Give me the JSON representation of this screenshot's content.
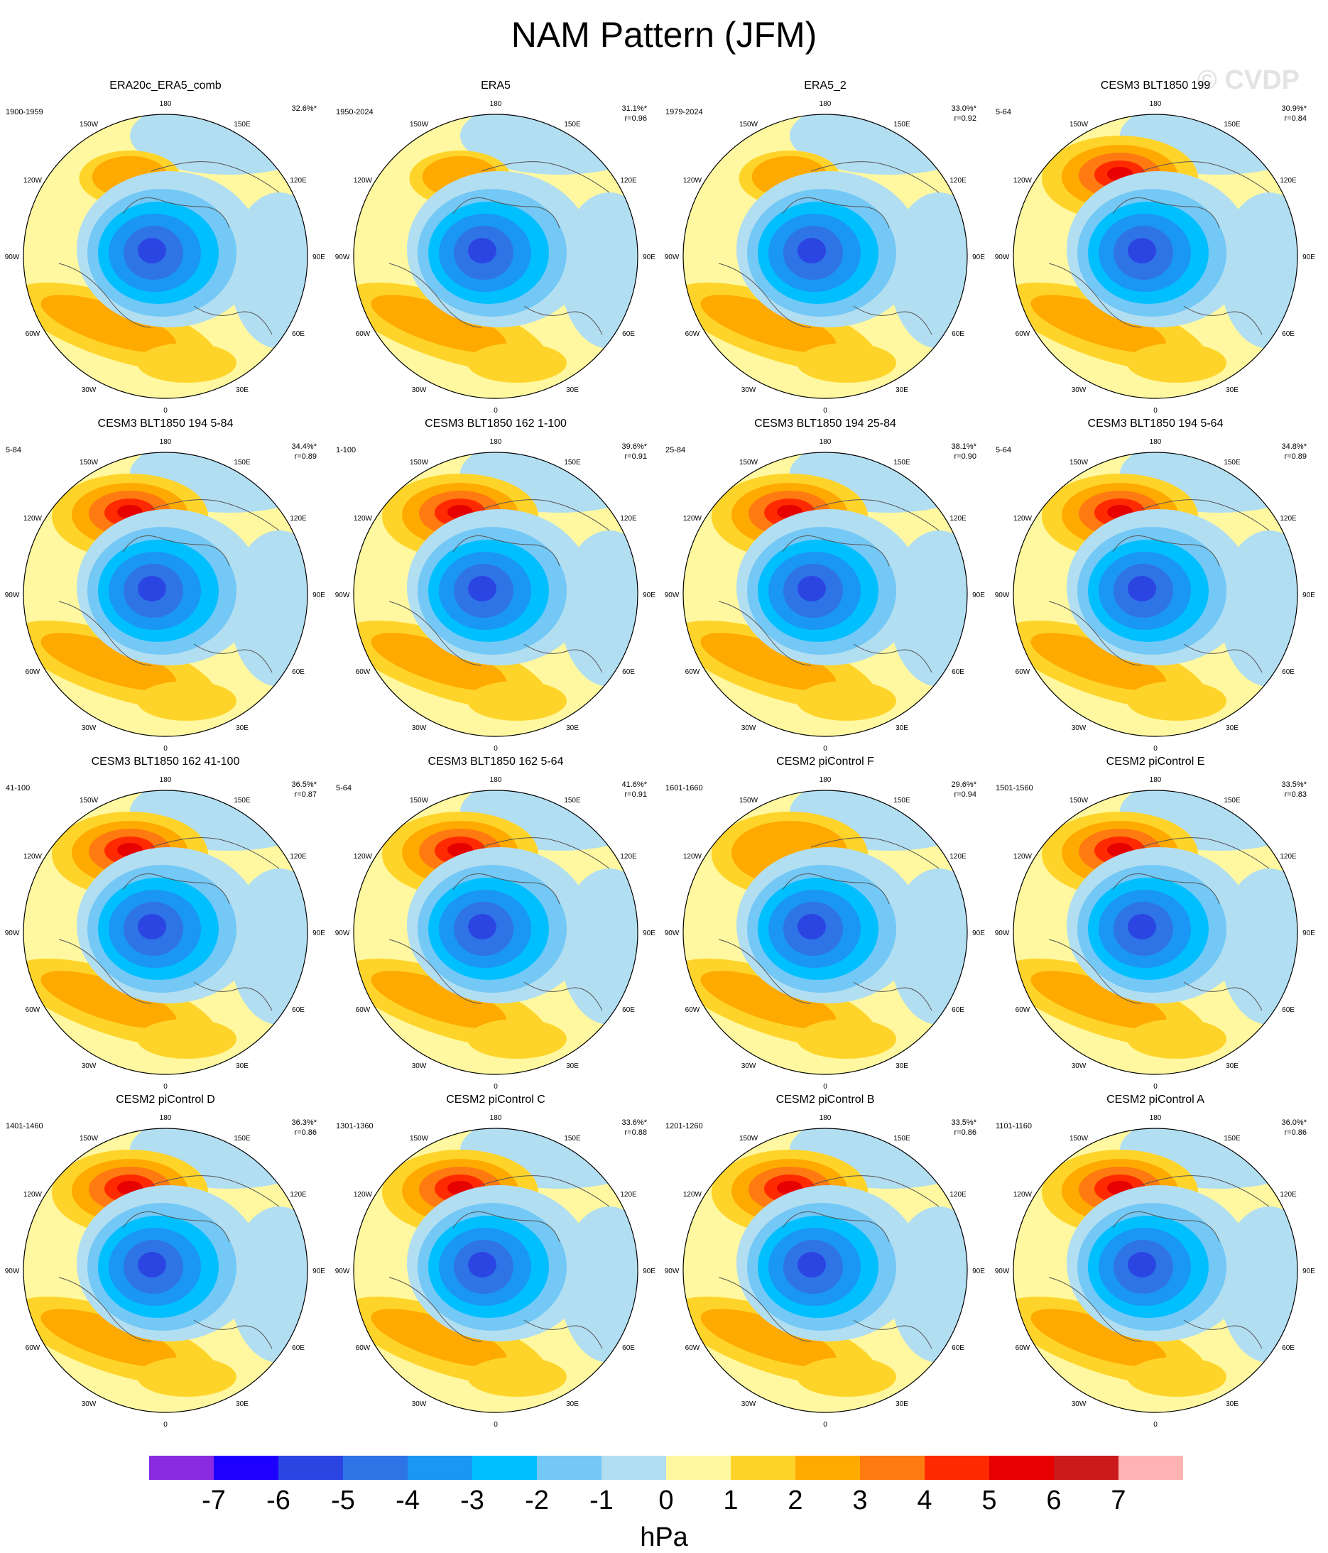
{
  "figure": {
    "title": "NAM Pattern (JFM)",
    "watermark": "© CVDP"
  },
  "panels": [
    {
      "title": "ERA20c_ERA5_comb",
      "period": "1900-1959",
      "pct": "32.6%*",
      "r": ""
    },
    {
      "title": "ERA5",
      "period": "1950-2024",
      "pct": "31.1%*",
      "r": "r=0.96"
    },
    {
      "title": "ERA5_2",
      "period": "1979-2024",
      "pct": "33.0%*",
      "r": "r=0.92"
    },
    {
      "title": "CESM3 BLT1850 199",
      "period": "5-64",
      "pct": "30.9%*",
      "r": "r=0.84"
    },
    {
      "title": "CESM3 BLT1850 194 5-84",
      "period": "5-84",
      "pct": "34.4%*",
      "r": "r=0.89"
    },
    {
      "title": "CESM3 BLT1850 162 1-100",
      "period": "1-100",
      "pct": "39.6%*",
      "r": "r=0.91"
    },
    {
      "title": "CESM3 BLT1850 194 25-84",
      "period": "25-84",
      "pct": "38.1%*",
      "r": "r=0.90"
    },
    {
      "title": "CESM3 BLT1850 194 5-64",
      "period": "5-64",
      "pct": "34.8%*",
      "r": "r=0.89"
    },
    {
      "title": "CESM3 BLT1850 162 41-100",
      "period": "41-100",
      "pct": "36.5%*",
      "r": "r=0.87"
    },
    {
      "title": "CESM3 BLT1850 162 5-64",
      "period": "5-64",
      "pct": "41.6%*",
      "r": "r=0.91"
    },
    {
      "title": "CESM2 piControl F",
      "period": "1601-1660",
      "pct": "29.6%*",
      "r": "r=0.94"
    },
    {
      "title": "CESM2 piControl E",
      "period": "1501-1560",
      "pct": "33.5%*",
      "r": "r=0.83"
    },
    {
      "title": "CESM2 piControl D",
      "period": "1401-1460",
      "pct": "36.3%*",
      "r": "r=0.86"
    },
    {
      "title": "CESM2 piControl C",
      "period": "1301-1360",
      "pct": "33.6%*",
      "r": "r=0.88"
    },
    {
      "title": "CESM2 piControl B",
      "period": "1201-1260",
      "pct": "33.5%*",
      "r": "r=0.86"
    },
    {
      "title": "CESM2 piControl A",
      "period": "1101-1160",
      "pct": "36.0%*",
      "r": "r=0.86"
    }
  ],
  "longitude_labels": [
    "180",
    "150E",
    "120E",
    "90E",
    "60E",
    "30E",
    "0",
    "30W",
    "60W",
    "90W",
    "120W",
    "150W"
  ],
  "colorbar": {
    "unit": "hPa",
    "colors": [
      "#8a2be2",
      "#1e00ff",
      "#2b45e3",
      "#2f74e6",
      "#1a96f5",
      "#00bfff",
      "#73c8f5",
      "#b2def2",
      "#fff8a0",
      "#ffd42a",
      "#ffaa00",
      "#ff7a10",
      "#ff2a00",
      "#e60000",
      "#cc1a1a",
      "#ffb3b3"
    ],
    "tick_labels": [
      "-7",
      "-6",
      "-5",
      "-4",
      "-3",
      "-2",
      "-1",
      "0",
      "1",
      "2",
      "3",
      "4",
      "5",
      "6",
      "7"
    ]
  },
  "palette": {
    "neutral_pos": "#fff8a0",
    "neutral_neg": "#b2def2",
    "coast": "#555555"
  }
}
